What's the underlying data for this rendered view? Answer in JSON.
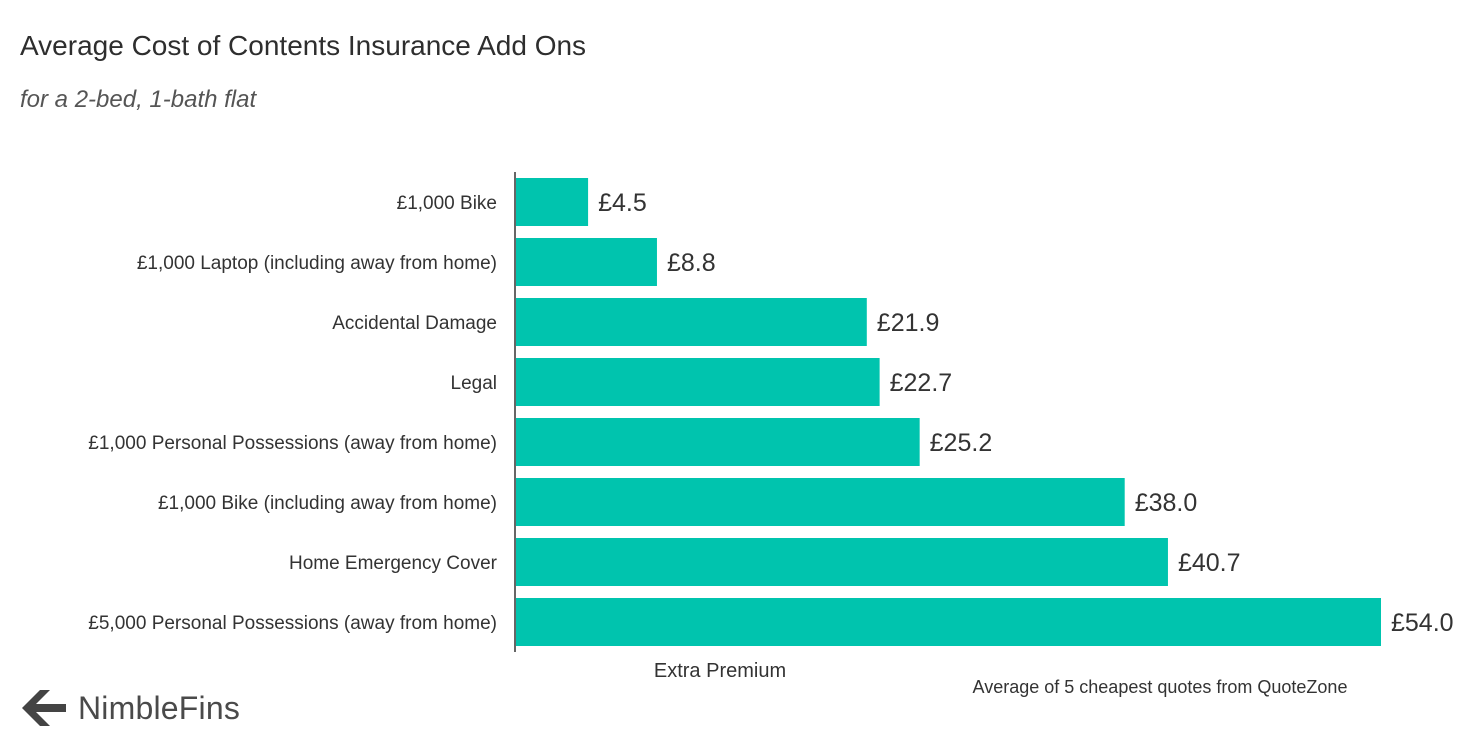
{
  "brand": {
    "name": "NimbleFins",
    "icon": "nimblefins-arrow-logo-icon",
    "color": "#444444"
  },
  "colors": {
    "bar": "#00C4AE",
    "axis": "#333333",
    "text": "#333333"
  },
  "chart_data": {
    "type": "bar",
    "orientation": "horizontal",
    "title": "Average Cost of Contents Insurance Add Ons",
    "subtitle": "for a 2-bed, 1-bath flat",
    "xlabel": "Extra Premium",
    "ylabel": "",
    "source_note": "Average of 5 cheapest quotes from QuoteZone",
    "value_prefix": "£",
    "xlim": [
      0,
      54
    ],
    "grid": false,
    "categories": [
      "£1,000 Bike",
      "£1,000 Laptop (including away from home)",
      "Accidental Damage",
      "Legal",
      "£1,000 Personal Possessions (away from home)",
      "£1,000 Bike (including away from home)",
      "Home Emergency Cover",
      "£5,000 Personal Possessions (away from home)"
    ],
    "values": [
      4.5,
      8.8,
      21.9,
      22.7,
      25.2,
      38.0,
      40.7,
      54.0
    ],
    "data_labels": [
      "£4.5",
      "£8.8",
      "£21.9",
      "£22.7",
      "£25.2",
      "£38.0",
      "£40.7",
      "£54.0"
    ]
  }
}
